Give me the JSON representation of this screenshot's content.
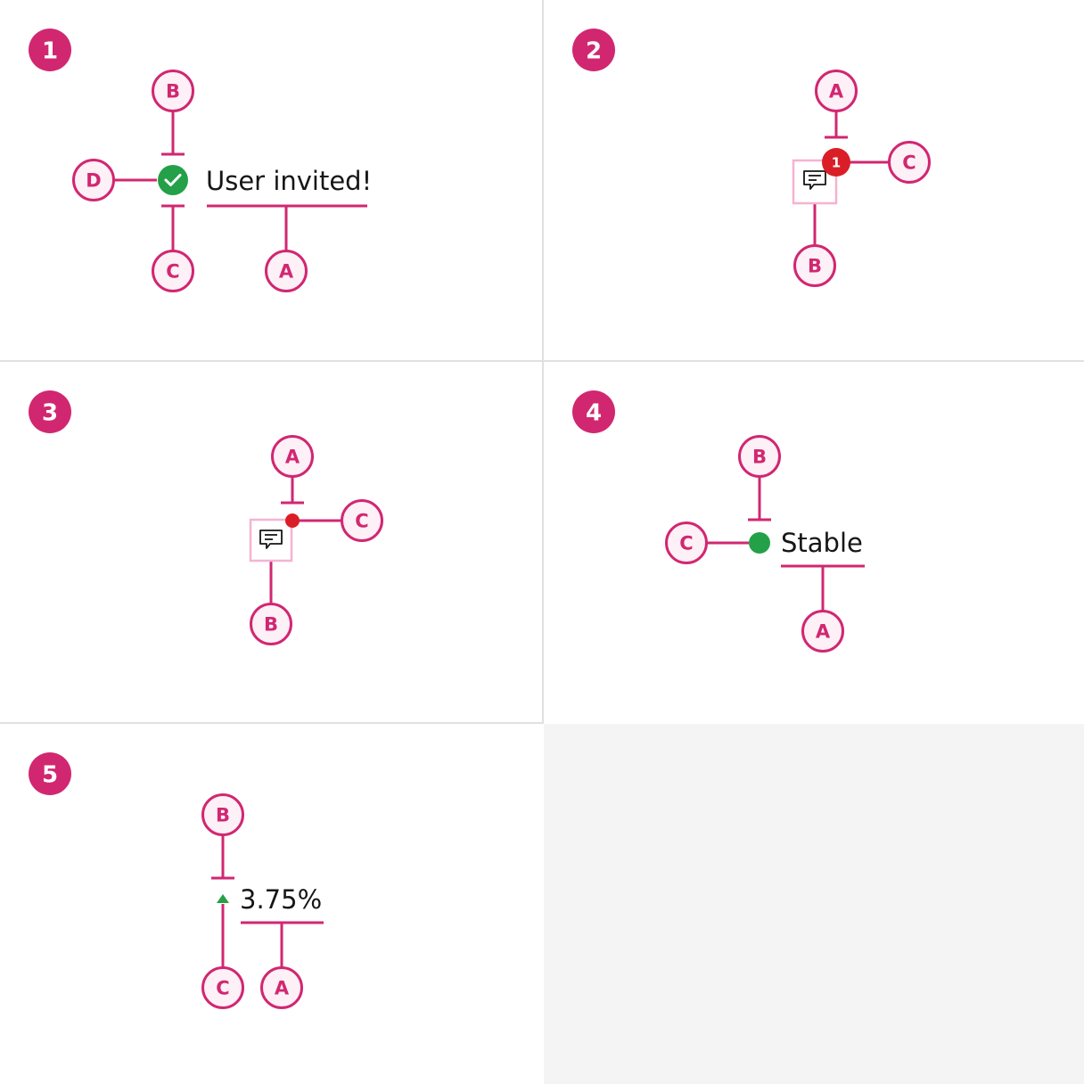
{
  "colors": {
    "accent": "#d12771",
    "callout_fill": "#fdf0f6",
    "icon_box": "#f5b3d2",
    "success": "#24a148",
    "error": "#da1e28",
    "text": "#161616",
    "panel_bg": "#f4f4f4"
  },
  "panels": [
    {
      "number": "1",
      "text": "User invited!",
      "icon": "checkmark-filled-icon",
      "callouts": [
        "A",
        "B",
        "C",
        "D"
      ]
    },
    {
      "number": "2",
      "badge_count": "1",
      "icon": "chat-icon",
      "callouts": [
        "A",
        "B",
        "C"
      ]
    },
    {
      "number": "3",
      "icon": "chat-icon",
      "callouts": [
        "A",
        "B",
        "C"
      ]
    },
    {
      "number": "4",
      "text": "Stable",
      "icon": "status-dot",
      "callouts": [
        "A",
        "B",
        "C"
      ]
    },
    {
      "number": "5",
      "text": "3.75%",
      "icon": "caret-up-icon",
      "callouts": [
        "A",
        "B",
        "C"
      ]
    }
  ]
}
